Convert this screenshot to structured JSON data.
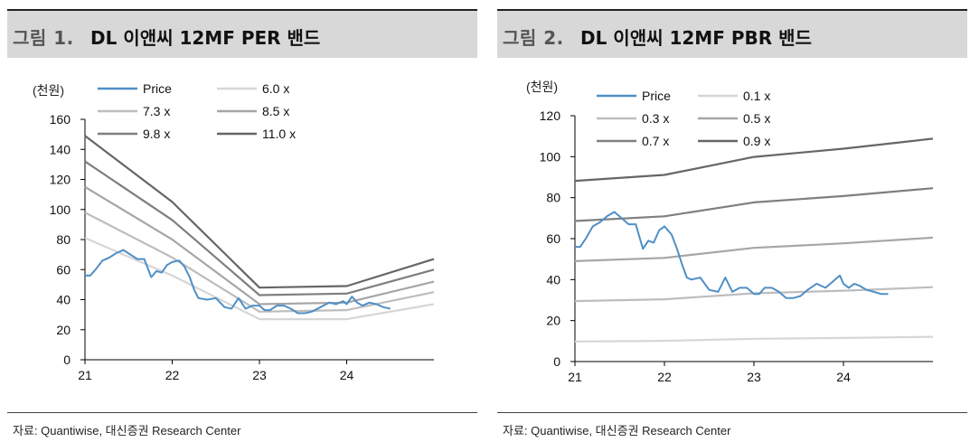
{
  "figures": [
    {
      "number": "그림 1.",
      "title": "DL 이앤씨 12MF PER 밴드",
      "source": "자료: Quantiwise, 대신증권 Research Center"
    },
    {
      "number": "그림 2.",
      "title": "DL 이앤씨 12MF PBR 밴드",
      "source": "자료: Quantiwise, 대신증권 Research Center"
    }
  ],
  "colors": {
    "price": "#4f8fc6",
    "band1": "#d6d6d6",
    "band2": "#bdbdbd",
    "band3": "#a6a6a6",
    "band4": "#7f7f7f",
    "band5": "#666666"
  },
  "chart_data": [
    {
      "type": "line",
      "unit_label": "(천원)",
      "x_ticks": [
        "21",
        "22",
        "23",
        "24"
      ],
      "xlim": [
        2021.0,
        2025.0
      ],
      "ylim": [
        0,
        160
      ],
      "y_ticks": [
        "0",
        "20",
        "40",
        "60",
        "80",
        "100",
        "120",
        "140",
        "160"
      ],
      "legend_position": "top",
      "series": [
        {
          "name": "Price",
          "color": "#4f8fc6",
          "x": [
            2021.0,
            2021.06,
            2021.12,
            2021.2,
            2021.28,
            2021.36,
            2021.44,
            2021.52,
            2021.6,
            2021.68,
            2021.76,
            2021.82,
            2021.88,
            2021.94,
            2022.0,
            2022.08,
            2022.14,
            2022.2,
            2022.25,
            2022.3,
            2022.4,
            2022.5,
            2022.6,
            2022.68,
            2022.76,
            2022.84,
            2022.92,
            2023.0,
            2023.06,
            2023.12,
            2023.2,
            2023.28,
            2023.36,
            2023.44,
            2023.52,
            2023.6,
            2023.7,
            2023.8,
            2023.88,
            2023.96,
            2024.0,
            2024.06,
            2024.12,
            2024.18,
            2024.26,
            2024.34,
            2024.42,
            2024.5
          ],
          "y": [
            56,
            56,
            60,
            66,
            68,
            71,
            73,
            70,
            67,
            67,
            55,
            59,
            58,
            63,
            65,
            66,
            62,
            55,
            47,
            41,
            40,
            41,
            35,
            34,
            41,
            34,
            36,
            36,
            33,
            33,
            36,
            36,
            34,
            31,
            31,
            32,
            35,
            38,
            37,
            39,
            37,
            42,
            38,
            36,
            38,
            37,
            35,
            34
          ]
        },
        {
          "name": "6.0 x",
          "color": "#d6d6d6",
          "x": [
            2021.0,
            2022.0,
            2023.0,
            2024.0,
            2025.0
          ],
          "y": [
            81,
            56,
            27,
            27,
            37
          ]
        },
        {
          "name": "7.3 x",
          "color": "#bdbdbd",
          "x": [
            2021.0,
            2022.0,
            2023.0,
            2024.0,
            2025.0
          ],
          "y": [
            98,
            68,
            32,
            33,
            45
          ]
        },
        {
          "name": "8.5 x",
          "color": "#a6a6a6",
          "x": [
            2021.0,
            2022.0,
            2023.0,
            2024.0,
            2025.0
          ],
          "y": [
            115,
            80,
            37,
            38,
            52
          ]
        },
        {
          "name": "9.8 x",
          "color": "#7f7f7f",
          "x": [
            2021.0,
            2022.0,
            2023.0,
            2024.0,
            2025.0
          ],
          "y": [
            132,
            93,
            43,
            44,
            60
          ]
        },
        {
          "name": "11.0 x",
          "color": "#666666",
          "x": [
            2021.0,
            2022.0,
            2023.0,
            2024.0,
            2025.0
          ],
          "y": [
            149,
            105,
            48,
            49,
            67
          ]
        }
      ]
    },
    {
      "type": "line",
      "unit_label": "(천원)",
      "x_ticks": [
        "21",
        "22",
        "23",
        "24"
      ],
      "xlim": [
        2021.0,
        2025.0
      ],
      "ylim": [
        0,
        120
      ],
      "y_ticks": [
        "0",
        "20",
        "40",
        "60",
        "80",
        "100",
        "120"
      ],
      "legend_position": "top",
      "series": [
        {
          "name": "Price",
          "color": "#4f8fc6",
          "x": [
            2021.0,
            2021.06,
            2021.12,
            2021.2,
            2021.28,
            2021.36,
            2021.44,
            2021.52,
            2021.6,
            2021.68,
            2021.76,
            2021.82,
            2021.88,
            2021.94,
            2022.0,
            2022.08,
            2022.14,
            2022.2,
            2022.25,
            2022.3,
            2022.4,
            2022.5,
            2022.6,
            2022.68,
            2022.76,
            2022.84,
            2022.92,
            2023.0,
            2023.06,
            2023.12,
            2023.2,
            2023.28,
            2023.36,
            2023.44,
            2023.52,
            2023.6,
            2023.7,
            2023.8,
            2023.88,
            2023.96,
            2024.0,
            2024.06,
            2024.12,
            2024.18,
            2024.26,
            2024.34,
            2024.42,
            2024.5
          ],
          "y": [
            56,
            56,
            60,
            66,
            68,
            71,
            73,
            70,
            67,
            67,
            55,
            59,
            58,
            64,
            66,
            62,
            55,
            47,
            41,
            40,
            41,
            35,
            34,
            41,
            34,
            36,
            36,
            33,
            33,
            36,
            36,
            34,
            31,
            31,
            32,
            35,
            38,
            36,
            39,
            42,
            38,
            36,
            38,
            37,
            35,
            34,
            33,
            33
          ]
        },
        {
          "name": "0.1 x",
          "color": "#d6d6d6",
          "x": [
            2021.0,
            2022.0,
            2023.0,
            2024.0,
            2025.0
          ],
          "y": [
            9.8,
            10.1,
            11.1,
            11.5,
            12.1
          ]
        },
        {
          "name": "0.3 x",
          "color": "#bdbdbd",
          "x": [
            2021.0,
            2022.0,
            2023.0,
            2024.0,
            2025.0
          ],
          "y": [
            29.5,
            30.4,
            33.3,
            34.6,
            36.3
          ]
        },
        {
          "name": "0.5 x",
          "color": "#a6a6a6",
          "x": [
            2021.0,
            2022.0,
            2023.0,
            2024.0,
            2025.0
          ],
          "y": [
            49,
            50.6,
            55.5,
            57.7,
            60.5
          ]
        },
        {
          "name": "0.7 x",
          "color": "#7f7f7f",
          "x": [
            2021.0,
            2022.0,
            2023.0,
            2024.0,
            2025.0
          ],
          "y": [
            68.6,
            70.9,
            77.7,
            80.8,
            84.6
          ]
        },
        {
          "name": "0.9 x",
          "color": "#666666",
          "x": [
            2021.0,
            2022.0,
            2023.0,
            2024.0,
            2025.0
          ],
          "y": [
            88.2,
            91.1,
            99.9,
            103.9,
            108.8
          ]
        }
      ]
    }
  ]
}
